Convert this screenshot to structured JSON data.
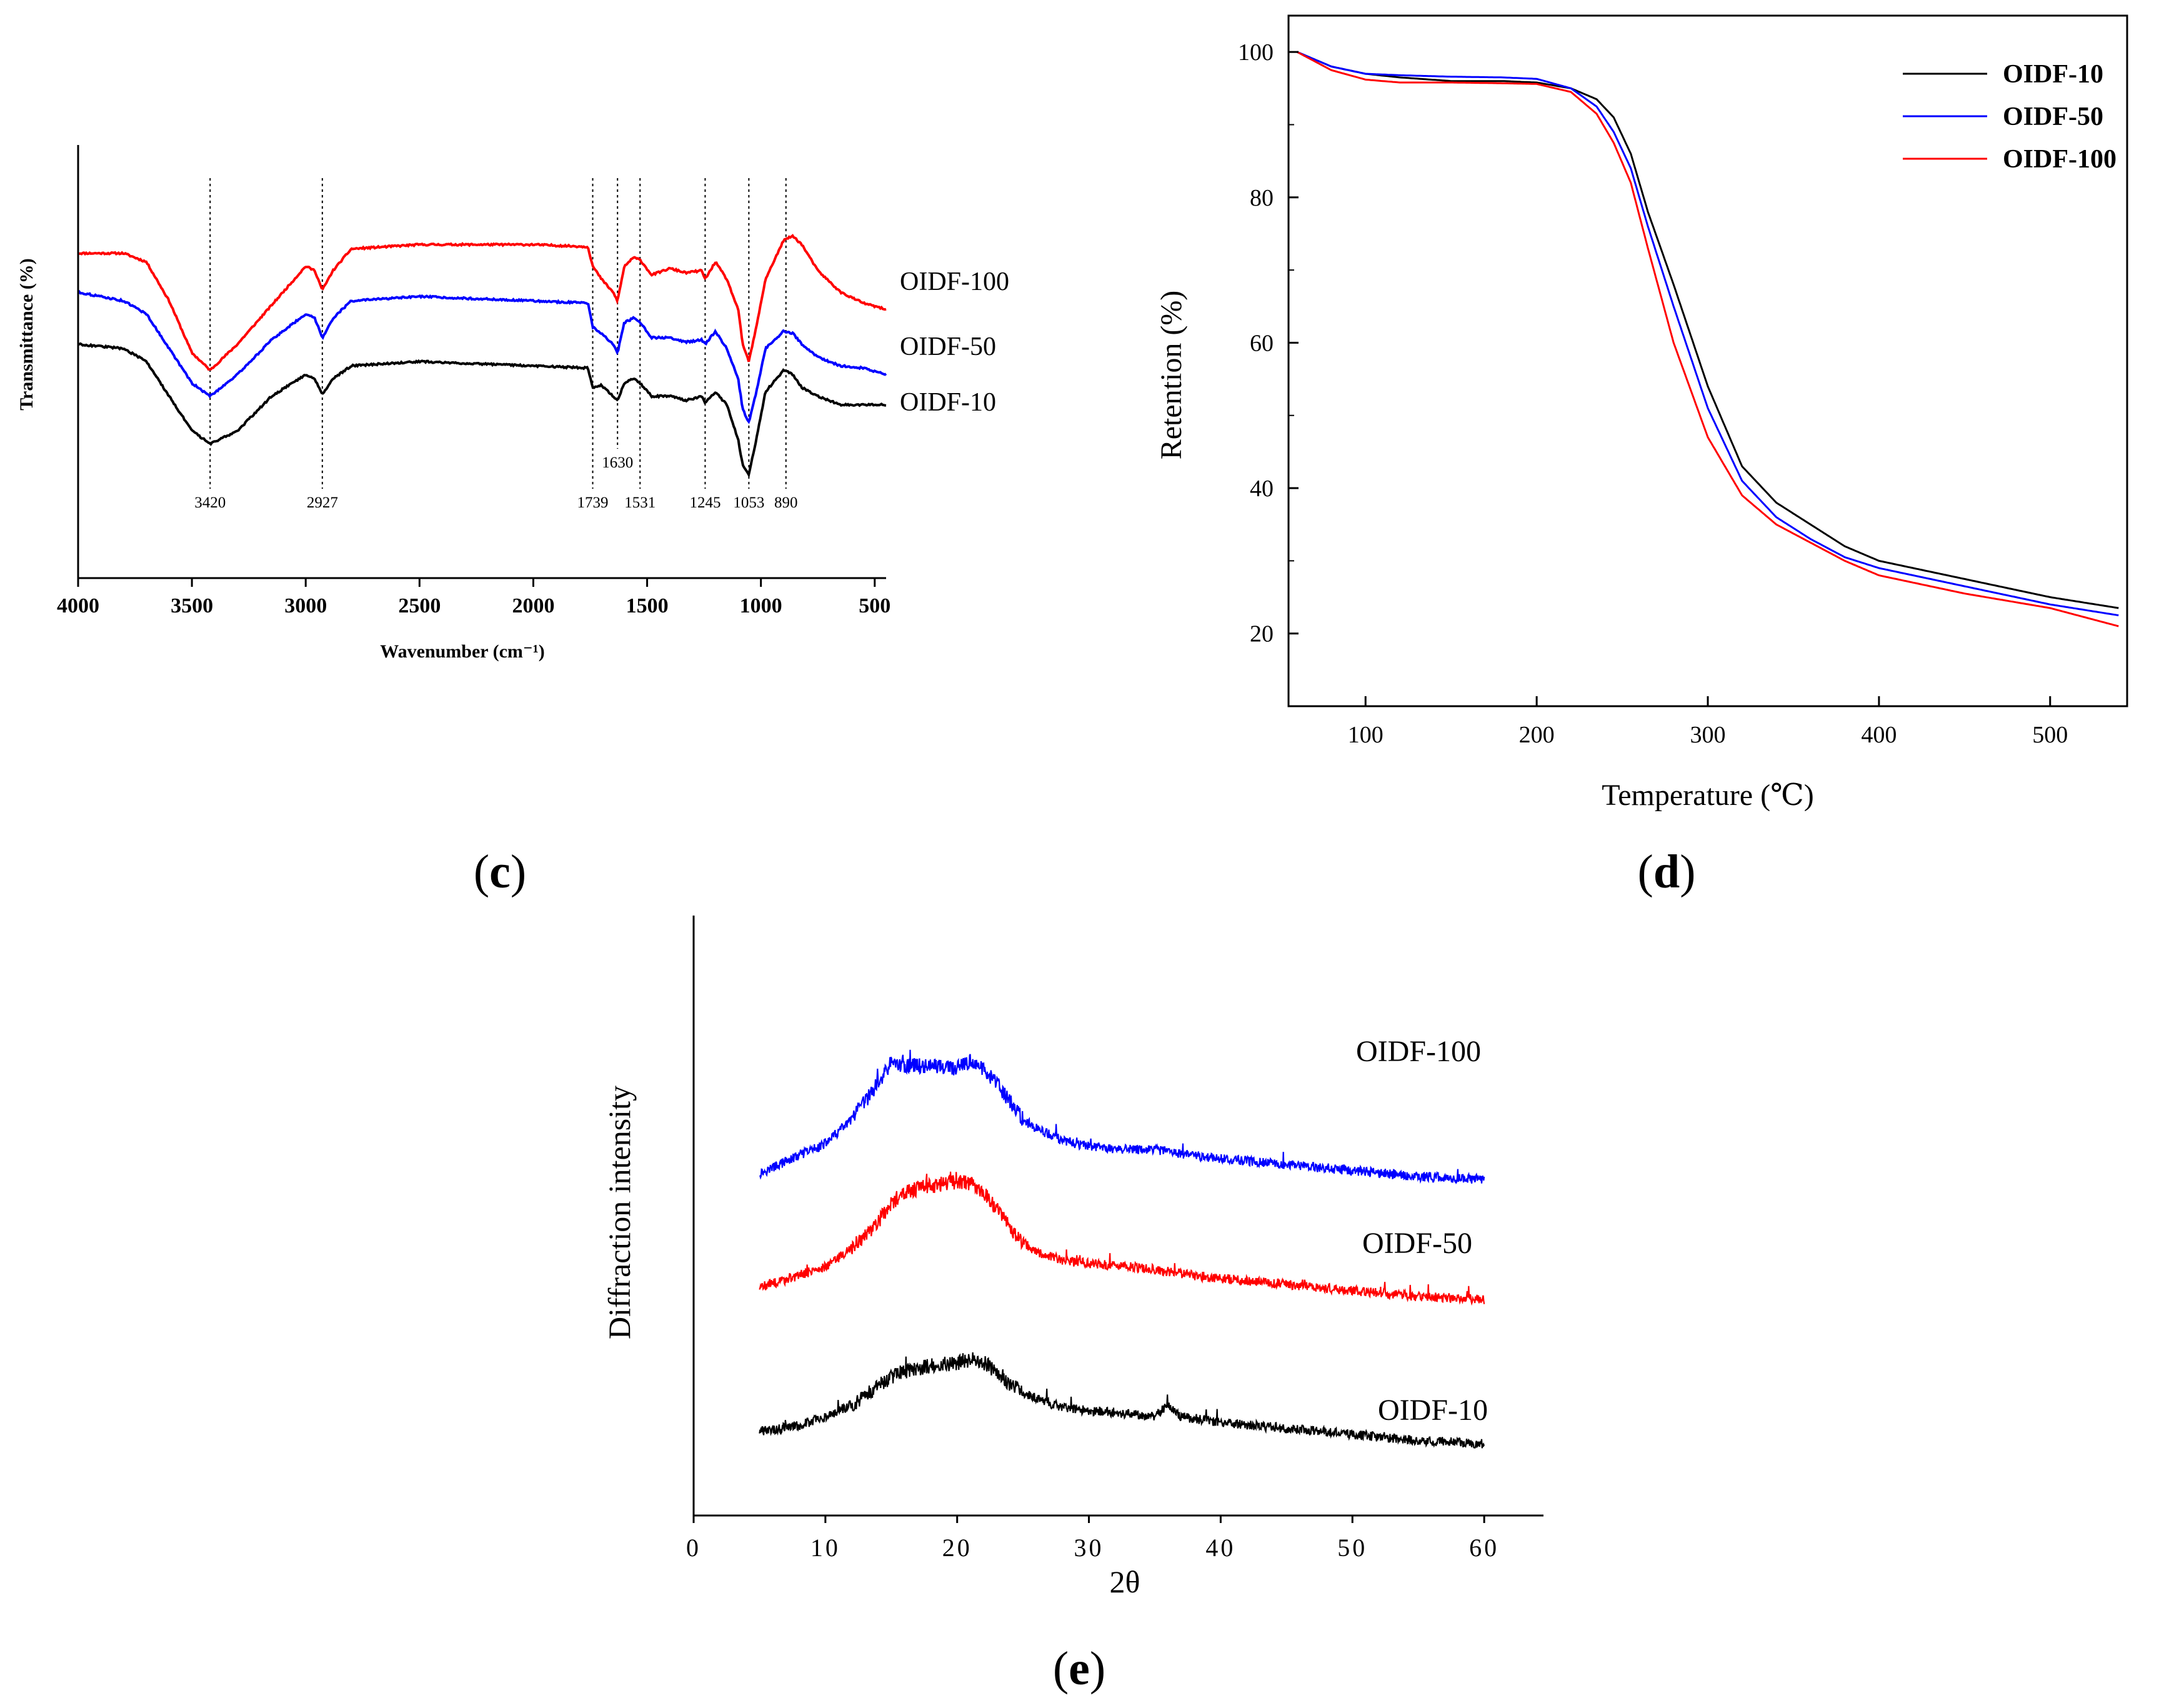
{
  "figure": {
    "panels": [
      "c",
      "d",
      "e"
    ]
  },
  "chart_data": [
    {
      "panel": "c",
      "type": "line",
      "title": "",
      "xlabel": "Wavenumber (cm⁻¹)",
      "ylabel": "Transmittance (%)",
      "xlim": [
        4000,
        450
      ],
      "x_ticks": [
        4000,
        3500,
        3000,
        2500,
        2000,
        1500,
        1000,
        500
      ],
      "colors": {
        "OIDF-100": "#ff0000",
        "OIDF-50": "#0000ff",
        "OIDF-10": "#000000"
      },
      "series": [
        {
          "name": "OIDF-100",
          "x": [
            4000,
            3800,
            3700,
            3600,
            3500,
            3420,
            3300,
            3150,
            3000,
            2960,
            2927,
            2880,
            2800,
            2500,
            2000,
            1760,
            1739,
            1700,
            1650,
            1630,
            1600,
            1560,
            1531,
            1480,
            1400,
            1330,
            1260,
            1245,
            1200,
            1150,
            1100,
            1080,
            1053,
            1020,
            980,
            900,
            860,
            820,
            750,
            650,
            550,
            450
          ],
          "y": [
            0.75,
            0.75,
            0.73,
            0.64,
            0.52,
            0.48,
            0.54,
            0.63,
            0.72,
            0.71,
            0.665,
            0.71,
            0.76,
            0.77,
            0.77,
            0.765,
            0.72,
            0.69,
            0.66,
            0.64,
            0.72,
            0.74,
            0.735,
            0.7,
            0.715,
            0.705,
            0.71,
            0.69,
            0.73,
            0.69,
            0.62,
            0.54,
            0.5,
            0.58,
            0.69,
            0.78,
            0.79,
            0.77,
            0.71,
            0.66,
            0.635,
            0.62
          ]
        },
        {
          "name": "OIDF-50",
          "x": [
            4000,
            3800,
            3700,
            3600,
            3500,
            3420,
            3300,
            3150,
            3000,
            2960,
            2927,
            2880,
            2800,
            2500,
            2000,
            1760,
            1739,
            1700,
            1650,
            1630,
            1600,
            1560,
            1531,
            1480,
            1400,
            1330,
            1260,
            1245,
            1200,
            1150,
            1100,
            1080,
            1053,
            1020,
            980,
            900,
            860,
            820,
            750,
            650,
            550,
            450
          ],
          "y": [
            0.66,
            0.64,
            0.61,
            0.53,
            0.45,
            0.42,
            0.47,
            0.55,
            0.61,
            0.6,
            0.555,
            0.6,
            0.64,
            0.65,
            0.64,
            0.635,
            0.58,
            0.565,
            0.54,
            0.52,
            0.59,
            0.6,
            0.59,
            0.555,
            0.555,
            0.545,
            0.55,
            0.54,
            0.57,
            0.53,
            0.46,
            0.39,
            0.36,
            0.43,
            0.53,
            0.57,
            0.565,
            0.54,
            0.51,
            0.49,
            0.485,
            0.47
          ]
        },
        {
          "name": "OIDF-10",
          "x": [
            4000,
            3800,
            3700,
            3600,
            3500,
            3420,
            3300,
            3150,
            3000,
            2960,
            2927,
            2880,
            2800,
            2500,
            2000,
            1760,
            1739,
            1700,
            1650,
            1630,
            1600,
            1560,
            1531,
            1480,
            1400,
            1330,
            1260,
            1245,
            1200,
            1150,
            1100,
            1080,
            1053,
            1020,
            980,
            900,
            860,
            820,
            750,
            650,
            550,
            450
          ],
          "y": [
            0.54,
            0.53,
            0.5,
            0.42,
            0.34,
            0.31,
            0.34,
            0.42,
            0.47,
            0.46,
            0.425,
            0.46,
            0.49,
            0.5,
            0.49,
            0.485,
            0.44,
            0.445,
            0.42,
            0.41,
            0.45,
            0.46,
            0.45,
            0.42,
            0.42,
            0.41,
            0.42,
            0.405,
            0.43,
            0.4,
            0.32,
            0.26,
            0.24,
            0.32,
            0.43,
            0.48,
            0.47,
            0.44,
            0.42,
            0.4,
            0.4,
            0.4
          ]
        }
      ],
      "annotations": [
        {
          "x": 3420,
          "label": "3420"
        },
        {
          "x": 2927,
          "label": "2927"
        },
        {
          "x": 1739,
          "label": "1739"
        },
        {
          "x": 1630,
          "label": "1630"
        },
        {
          "x": 1531,
          "label": "1531"
        },
        {
          "x": 1245,
          "label": "1245"
        },
        {
          "x": 1053,
          "label": "1053"
        },
        {
          "x": 890,
          "label": "890"
        }
      ]
    },
    {
      "panel": "d",
      "type": "line",
      "title": "",
      "xlabel": "Temperature (℃)",
      "ylabel": "Retention (%)",
      "xlim": [
        55,
        545
      ],
      "ylim": [
        10,
        105
      ],
      "x_ticks": [
        100,
        200,
        300,
        400,
        500
      ],
      "y_ticks": [
        20,
        40,
        60,
        80,
        100
      ],
      "legend": "top-right",
      "colors": {
        "OIDF-10": "#000000",
        "OIDF-50": "#0000ff",
        "OIDF-100": "#ff0000"
      },
      "series": [
        {
          "name": "OIDF-10",
          "x": [
            60,
            80,
            100,
            120,
            150,
            180,
            200,
            220,
            235,
            245,
            255,
            265,
            280,
            300,
            320,
            340,
            360,
            380,
            400,
            450,
            500,
            540
          ],
          "y": [
            100,
            98,
            97,
            96.5,
            96,
            96,
            95.8,
            95,
            93.5,
            91,
            86,
            78,
            68,
            54,
            43,
            38,
            35,
            32,
            30,
            27.5,
            25,
            23.5
          ]
        },
        {
          "name": "OIDF-50",
          "x": [
            60,
            80,
            100,
            120,
            150,
            180,
            200,
            220,
            235,
            245,
            255,
            265,
            280,
            300,
            320,
            340,
            360,
            380,
            400,
            450,
            500,
            540
          ],
          "y": [
            100,
            98,
            97,
            96.8,
            96.6,
            96.5,
            96.3,
            95,
            92.5,
            89,
            84,
            76,
            65,
            51,
            41,
            36,
            33,
            30.5,
            29,
            26.5,
            24,
            22.5
          ]
        },
        {
          "name": "OIDF-100",
          "x": [
            60,
            80,
            100,
            120,
            150,
            180,
            200,
            220,
            235,
            245,
            255,
            265,
            280,
            300,
            320,
            340,
            360,
            380,
            400,
            450,
            500,
            540
          ],
          "y": [
            100,
            97.5,
            96.2,
            95.8,
            95.8,
            95.7,
            95.6,
            94.5,
            91.5,
            87.5,
            82,
            73,
            60,
            47,
            39,
            35,
            32.5,
            30,
            28,
            25.5,
            23.5,
            21
          ]
        }
      ]
    },
    {
      "panel": "e",
      "type": "line",
      "title": "",
      "xlabel": "2θ",
      "ylabel": "Diffraction intensity",
      "xlim": [
        0,
        64.5
      ],
      "x_ticks": [
        0,
        10,
        20,
        30,
        40,
        50,
        60
      ],
      "colors": {
        "OIDF-100": "#0000ff",
        "OIDF-50": "#ff0000",
        "OIDF-10": "#000000"
      },
      "series": [
        {
          "name": "OIDF-100",
          "x": [
            5,
            8,
            10,
            12,
            14,
            15,
            16,
            18,
            20,
            21,
            22,
            23,
            24,
            25,
            26,
            28,
            30,
            33,
            35,
            38,
            40,
            45,
            50,
            55,
            60
          ],
          "y": [
            0.57,
            0.6,
            0.62,
            0.66,
            0.72,
            0.755,
            0.75,
            0.75,
            0.745,
            0.755,
            0.745,
            0.72,
            0.69,
            0.66,
            0.645,
            0.625,
            0.615,
            0.61,
            0.61,
            0.6,
            0.595,
            0.585,
            0.575,
            0.565,
            0.56
          ]
        },
        {
          "name": "OIDF-50",
          "x": [
            5,
            8,
            10,
            12,
            14,
            15,
            16,
            18,
            20,
            21,
            22,
            23,
            24,
            25,
            26,
            28,
            30,
            33,
            35,
            38,
            40,
            45,
            50,
            55,
            60
          ],
          "y": [
            0.38,
            0.4,
            0.415,
            0.445,
            0.49,
            0.52,
            0.54,
            0.55,
            0.555,
            0.555,
            0.54,
            0.51,
            0.48,
            0.455,
            0.44,
            0.425,
            0.42,
            0.415,
            0.41,
            0.4,
            0.395,
            0.385,
            0.375,
            0.365,
            0.36
          ]
        },
        {
          "name": "OIDF-10",
          "x": [
            5,
            8,
            10,
            12,
            14,
            15,
            16,
            18,
            20,
            21,
            22,
            23,
            24,
            25,
            26,
            28,
            30,
            33,
            35,
            36,
            37,
            40,
            45,
            50,
            55,
            60
          ],
          "y": [
            0.14,
            0.15,
            0.165,
            0.185,
            0.215,
            0.23,
            0.24,
            0.25,
            0.255,
            0.26,
            0.255,
            0.24,
            0.22,
            0.205,
            0.195,
            0.18,
            0.175,
            0.17,
            0.165,
            0.185,
            0.165,
            0.155,
            0.145,
            0.135,
            0.125,
            0.12
          ]
        }
      ]
    }
  ]
}
